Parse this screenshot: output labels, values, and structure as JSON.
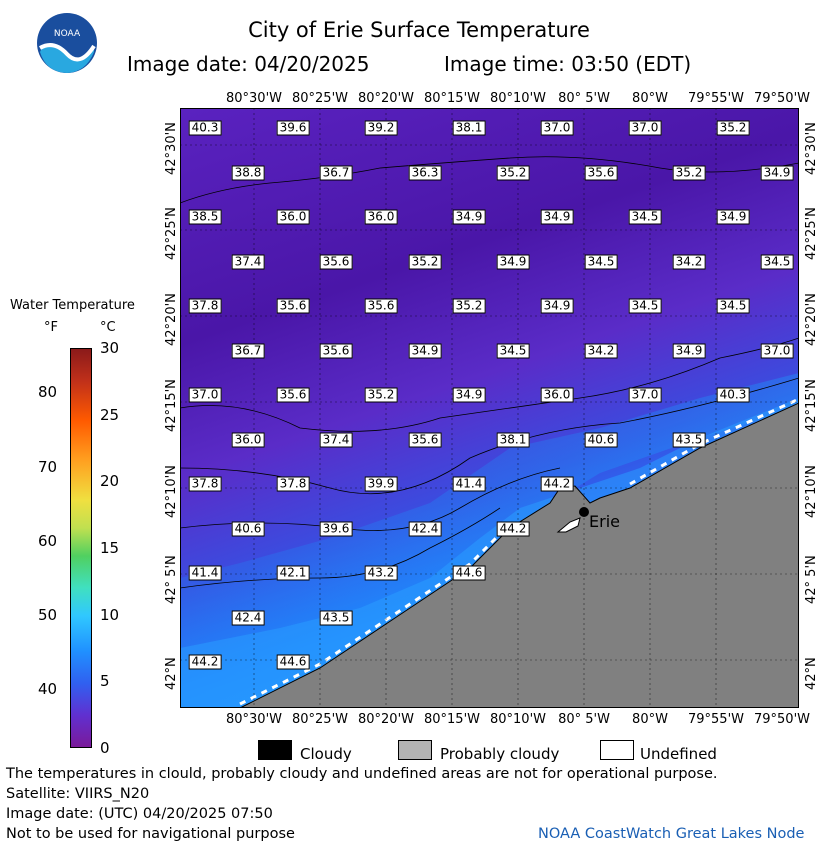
{
  "header": {
    "title": "City of Erie Surface Temperature",
    "date_label": "Image date: 04/20/2025",
    "time_label": "Image time: 03:50 (EDT)"
  },
  "logo": {
    "text": "NOAA"
  },
  "map": {
    "lon_labels": [
      "80°30'W",
      "80°25'W",
      "80°20'W",
      "80°15'W",
      "80°10'W",
      "80° 5'W",
      "80°W",
      "79°55'W",
      "79°50'W"
    ],
    "lat_labels": [
      "42°30'N",
      "42°25'N",
      "42°20'N",
      "42°15'N",
      "42°10'N",
      "42° 5'N",
      "42°N"
    ],
    "city_label": "Erie",
    "temperatures": [
      [
        "40.3",
        "39.6",
        "39.2",
        "38.1",
        "37.0",
        "37.0",
        "35.2"
      ],
      [
        "38.8",
        "36.7",
        "36.3",
        "35.2",
        "35.6",
        "35.2",
        "34.9"
      ],
      [
        "38.5",
        "36.0",
        "36.0",
        "34.9",
        "34.9",
        "34.5",
        "34.9"
      ],
      [
        "37.4",
        "35.6",
        "35.2",
        "34.9",
        "34.5",
        "34.2",
        "34.5"
      ],
      [
        "37.8",
        "35.6",
        "35.6",
        "35.2",
        "34.9",
        "34.5",
        "34.5"
      ],
      [
        "36.7",
        "35.6",
        "34.9",
        "34.5",
        "34.2",
        "34.9",
        "37.0"
      ],
      [
        "37.0",
        "35.6",
        "35.2",
        "34.9",
        "36.0",
        "37.0",
        "40.3"
      ],
      [
        "36.0",
        "37.4",
        "35.6",
        "38.1",
        "40.6",
        "43.5"
      ],
      [
        "37.8",
        "37.8",
        "39.9",
        "41.4",
        "44.2"
      ],
      [
        "40.6",
        "39.6",
        "42.4",
        "44.2"
      ],
      [
        "41.4",
        "42.1",
        "43.2",
        "44.6"
      ],
      [
        "42.4",
        "43.5"
      ],
      [
        "44.2",
        "44.6"
      ]
    ],
    "land_color": "#808080",
    "colors": {
      "cold": "#4b1aa8",
      "mid": "#6a2bd0",
      "warm": "#1e7fff",
      "warmer": "#29a8ff"
    }
  },
  "legend": {
    "title": "Water Temperature",
    "unit_f": "°F",
    "unit_c": "°C",
    "f_ticks": [
      "80",
      "70",
      "60",
      "50",
      "40"
    ],
    "c_ticks": [
      "30",
      "25",
      "20",
      "15",
      "10",
      "5",
      "0"
    ],
    "keys": [
      {
        "label": "Cloudy",
        "color": "#000000"
      },
      {
        "label": "Probably cloudy",
        "color": "#b3b3b3"
      },
      {
        "label": "Undefined",
        "color": "#ffffff"
      }
    ]
  },
  "footer": {
    "note": "The temperatures in clould, probably cloudy and undefined areas are not for operational purpose.",
    "satellite": "Satellite: VIIRS_N20",
    "utc_date": "Image date: (UTC) 04/20/2025  07:50",
    "nav_warning": "Not to be used for navigational purpose",
    "credit": "NOAA CoastWatch Great Lakes Node"
  }
}
